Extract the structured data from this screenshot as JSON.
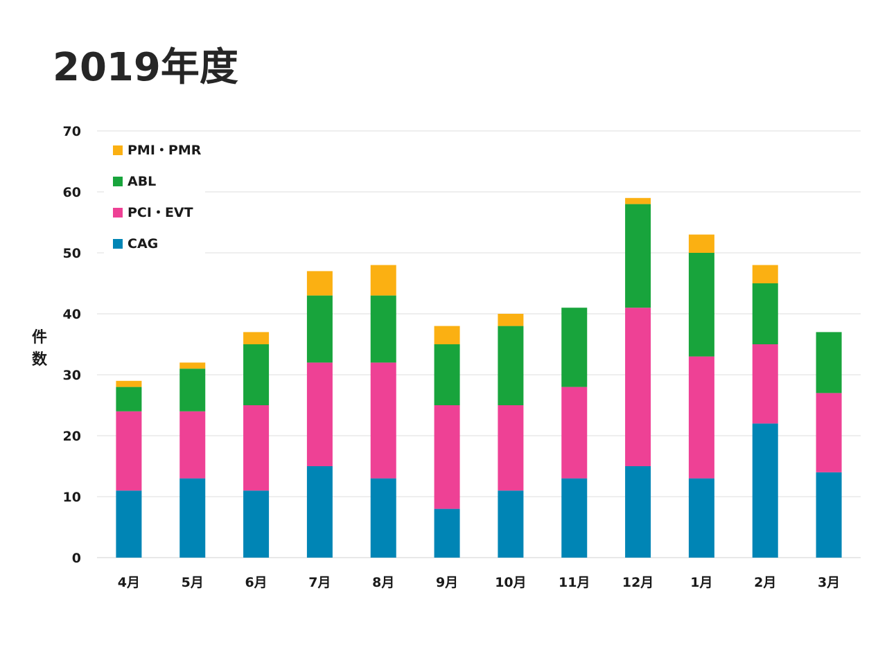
{
  "page": {
    "title": "2019年度"
  },
  "chart_data": {
    "type": "bar",
    "stacked": true,
    "title": "2019年度",
    "xlabel": "",
    "ylabel": "件数",
    "ylim": [
      0,
      70
    ],
    "yticks": [
      0,
      10,
      20,
      30,
      40,
      50,
      60,
      70
    ],
    "grid": true,
    "legend_position": "top-left",
    "categories": [
      "4月",
      "5月",
      "6月",
      "7月",
      "8月",
      "9月",
      "10月",
      "11月",
      "12月",
      "1月",
      "2月",
      "3月"
    ],
    "series": [
      {
        "name": "CAG",
        "color": "#0085B5",
        "values": [
          11,
          13,
          11,
          15,
          13,
          8,
          11,
          13,
          15,
          13,
          22,
          14
        ]
      },
      {
        "name": "PCI・EVT",
        "color": "#EE4195",
        "values": [
          13,
          11,
          14,
          17,
          19,
          17,
          14,
          15,
          26,
          20,
          13,
          13
        ]
      },
      {
        "name": "ABL",
        "color": "#18A43C",
        "values": [
          4,
          7,
          10,
          11,
          11,
          10,
          13,
          13,
          17,
          17,
          10,
          10
        ]
      },
      {
        "name": "PMI・PMR",
        "color": "#FBB012",
        "values": [
          1,
          1,
          2,
          4,
          5,
          3,
          2,
          0,
          1,
          3,
          3,
          0
        ]
      }
    ],
    "legend_order": [
      "PMI・PMR",
      "ABL",
      "PCI・EVT",
      "CAG"
    ]
  }
}
